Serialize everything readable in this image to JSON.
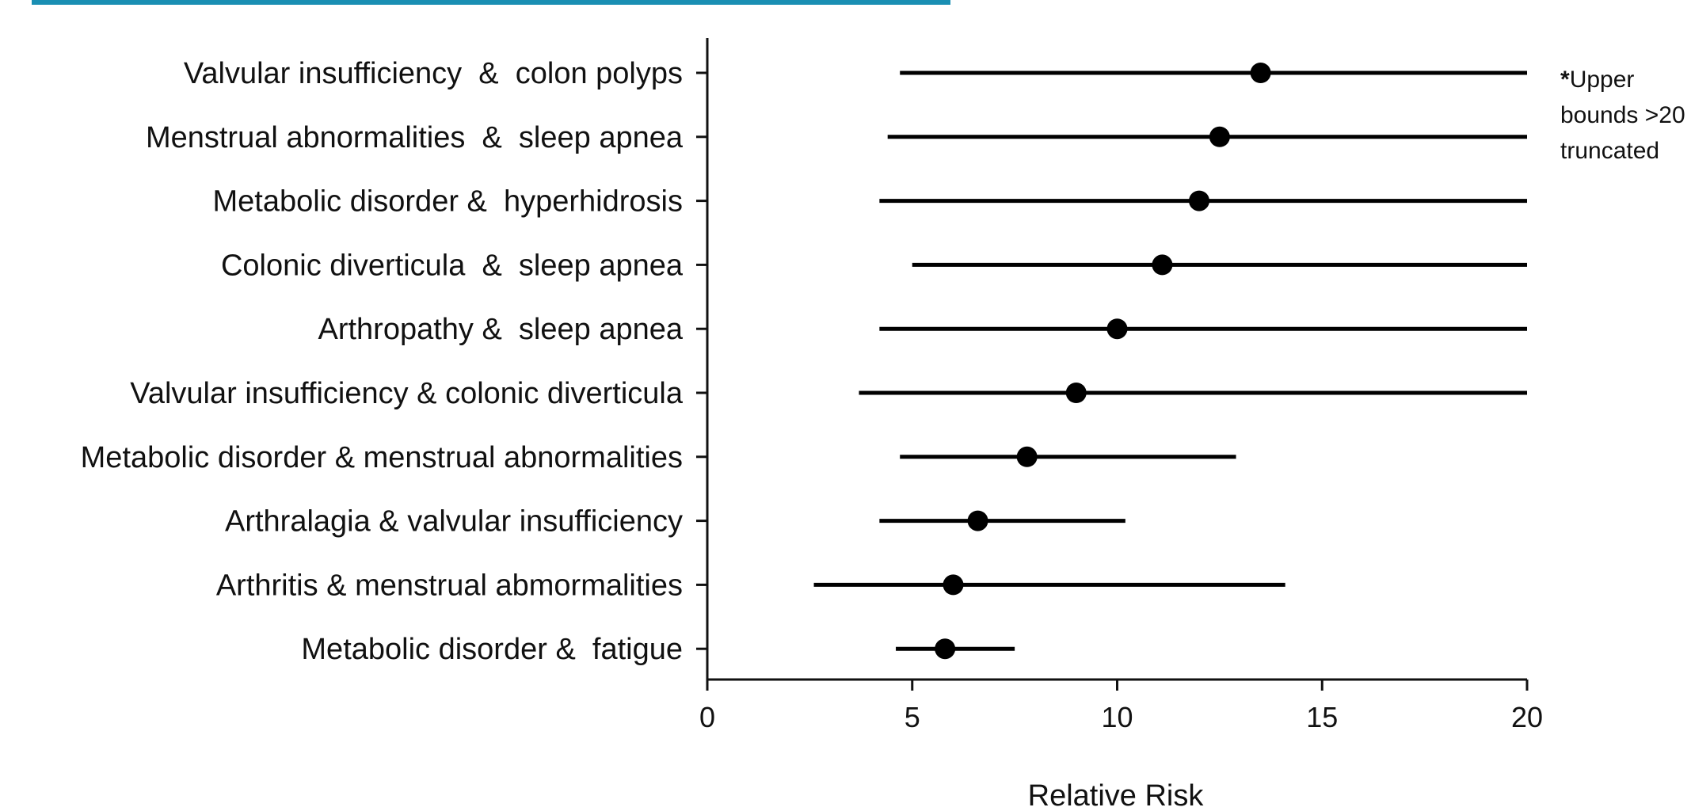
{
  "chart_data": {
    "type": "scatter",
    "title": "",
    "xlabel": "Relative Risk",
    "ylabel": "",
    "xlim": [
      0,
      20
    ],
    "x_ticks": [
      "0",
      "5",
      "10",
      "15",
      "20"
    ],
    "grid": false,
    "truncate_at": 20,
    "note": {
      "star": "*",
      "lines": [
        "Upper",
        "bounds >20",
        "truncated"
      ]
    },
    "series": [
      {
        "points": [
          {
            "label": "Valvular insufficiency  &  colon polyps",
            "rr": 13.5,
            "lower": 4.7,
            "upper": 20,
            "truncated": true
          },
          {
            "label": "Menstrual abnormalities  &  sleep apnea",
            "rr": 12.5,
            "lower": 4.4,
            "upper": 20,
            "truncated": true
          },
          {
            "label": "Metabolic disorder &  hyperhidrosis",
            "rr": 12.0,
            "lower": 4.2,
            "upper": 20,
            "truncated": true
          },
          {
            "label": "Colonic diverticula  &  sleep apnea",
            "rr": 11.1,
            "lower": 5.0,
            "upper": 20,
            "truncated": true
          },
          {
            "label": "Arthropathy &  sleep apnea",
            "rr": 10.0,
            "lower": 4.2,
            "upper": 20,
            "truncated": true
          },
          {
            "label": "Valvular insufficiency & colonic diverticula",
            "rr": 9.0,
            "lower": 3.7,
            "upper": 20,
            "truncated": true
          },
          {
            "label": "Metabolic disorder & menstrual abnormalities",
            "rr": 7.8,
            "lower": 4.7,
            "upper": 12.9,
            "truncated": false
          },
          {
            "label": "Arthralagia & valvular insufficiency",
            "rr": 6.6,
            "lower": 4.2,
            "upper": 10.2,
            "truncated": false
          },
          {
            "label": "Arthritis & menstrual abmormalities",
            "rr": 6.0,
            "lower": 2.6,
            "upper": 14.1,
            "truncated": false
          },
          {
            "label": "Metabolic disorder &  fatigue",
            "rr": 5.8,
            "lower": 4.6,
            "upper": 7.5,
            "truncated": false
          }
        ]
      }
    ]
  }
}
